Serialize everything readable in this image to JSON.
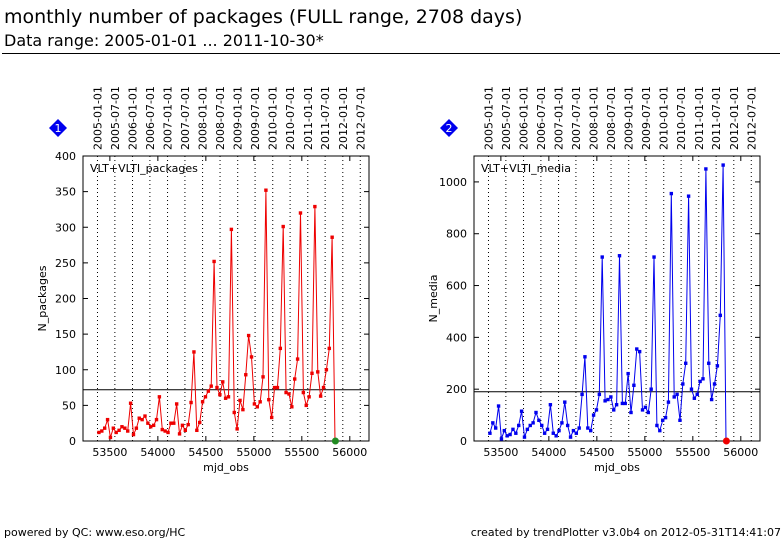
{
  "header": {
    "title": "monthly number of packages (FULL range, 2708 days)",
    "subtitle": "Data range: 2005-01-01 ... 2011-10-30*"
  },
  "footer": {
    "left": "powered by QC: www.eso.org/HC",
    "right": "created by trendPlotter v3.0b4 on 2012-05-31T14:41:07"
  },
  "chart_data": [
    {
      "type": "line",
      "panel_badge": "1",
      "badge_color": "#0000ee",
      "series_color": "#ee0000",
      "panel_label": "VLT+VLTI_packages",
      "xlabel": "mjd_obs",
      "ylabel": "N_packages",
      "xlim": [
        53220,
        56200
      ],
      "ylim": [
        0,
        400
      ],
      "x_ticks": [
        53500,
        54000,
        54500,
        55000,
        55500,
        56000
      ],
      "y_ticks": [
        0,
        50,
        100,
        150,
        200,
        250,
        300,
        350,
        400
      ],
      "date_ticks": [
        {
          "label": "2005-01-01",
          "mjd": 53371
        },
        {
          "label": "2005-07-01",
          "mjd": 53552
        },
        {
          "label": "2006-01-01",
          "mjd": 53736
        },
        {
          "label": "2006-07-01",
          "mjd": 53917
        },
        {
          "label": "2007-01-01",
          "mjd": 54101
        },
        {
          "label": "2007-07-01",
          "mjd": 54282
        },
        {
          "label": "2008-01-01",
          "mjd": 54466
        },
        {
          "label": "2008-07-01",
          "mjd": 54648
        },
        {
          "label": "2009-01-01",
          "mjd": 54832
        },
        {
          "label": "2009-07-01",
          "mjd": 55013
        },
        {
          "label": "2010-01-01",
          "mjd": 55197
        },
        {
          "label": "2010-07-01",
          "mjd": 55378
        },
        {
          "label": "2011-01-01",
          "mjd": 55562
        },
        {
          "label": "2011-07-01",
          "mjd": 55743
        },
        {
          "label": "2012-01-01",
          "mjd": 55927
        },
        {
          "label": "2012-07-01",
          "mjd": 56109
        }
      ],
      "reference_line": 72,
      "end_marker": {
        "x": 55850,
        "y": 0,
        "color": "#228b22"
      },
      "x": [
        53386,
        53416,
        53446,
        53476,
        53506,
        53536,
        53566,
        53596,
        53626,
        53656,
        53686,
        53716,
        53746,
        53776,
        53806,
        53836,
        53866,
        53896,
        53926,
        53956,
        53986,
        54016,
        54046,
        54076,
        54106,
        54136,
        54166,
        54196,
        54226,
        54256,
        54286,
        54316,
        54346,
        54376,
        54406,
        54436,
        54466,
        54496,
        54526,
        54556,
        54586,
        54616,
        54646,
        54676,
        54706,
        54736,
        54766,
        54796,
        54826,
        54856,
        54886,
        54916,
        54946,
        54976,
        55006,
        55036,
        55066,
        55096,
        55126,
        55156,
        55186,
        55216,
        55246,
        55276,
        55306,
        55336,
        55366,
        55396,
        55426,
        55456,
        55486,
        55516,
        55546,
        55576,
        55606,
        55636,
        55666,
        55696,
        55726,
        55756,
        55786,
        55816,
        55846
      ],
      "values": [
        12,
        14,
        18,
        30,
        5,
        18,
        12,
        15,
        20,
        18,
        14,
        53,
        9,
        18,
        32,
        30,
        35,
        25,
        20,
        22,
        30,
        62,
        16,
        14,
        12,
        25,
        25,
        52,
        10,
        22,
        15,
        23,
        54,
        125,
        15,
        26,
        55,
        62,
        70,
        77,
        252,
        75,
        65,
        83,
        60,
        62,
        297,
        40,
        17,
        57,
        44,
        93,
        148,
        118,
        52,
        48,
        55,
        90,
        352,
        58,
        33,
        75,
        75,
        130,
        301,
        68,
        66,
        48,
        87,
        115,
        320,
        68,
        50,
        62,
        95,
        329,
        97,
        63,
        75,
        100,
        130,
        286,
        0
      ]
    },
    {
      "type": "line",
      "panel_badge": "2",
      "badge_color": "#0000ee",
      "series_color": "#0000ee",
      "panel_label": "VLT+VLTI_media",
      "xlabel": "mjd_obs",
      "ylabel": "N_media",
      "xlim": [
        53220,
        56200
      ],
      "ylim": [
        0,
        1100
      ],
      "x_ticks": [
        53500,
        54000,
        54500,
        55000,
        55500,
        56000
      ],
      "y_ticks": [
        0,
        200,
        400,
        600,
        800,
        1000
      ],
      "date_ticks": [
        {
          "label": "2005-01-01",
          "mjd": 53371
        },
        {
          "label": "2005-07-01",
          "mjd": 53552
        },
        {
          "label": "2006-01-01",
          "mjd": 53736
        },
        {
          "label": "2006-07-01",
          "mjd": 53917
        },
        {
          "label": "2007-01-01",
          "mjd": 54101
        },
        {
          "label": "2007-07-01",
          "mjd": 54282
        },
        {
          "label": "2008-01-01",
          "mjd": 54466
        },
        {
          "label": "2008-07-01",
          "mjd": 54648
        },
        {
          "label": "2009-01-01",
          "mjd": 54832
        },
        {
          "label": "2009-07-01",
          "mjd": 55013
        },
        {
          "label": "2010-01-01",
          "mjd": 55197
        },
        {
          "label": "2010-07-01",
          "mjd": 55378
        },
        {
          "label": "2011-01-01",
          "mjd": 55562
        },
        {
          "label": "2011-07-01",
          "mjd": 55743
        },
        {
          "label": "2012-01-01",
          "mjd": 55927
        },
        {
          "label": "2012-07-01",
          "mjd": 56109
        }
      ],
      "reference_line": 190,
      "end_marker": {
        "x": 55850,
        "y": 0,
        "color": "#ee0000"
      },
      "x": [
        53386,
        53416,
        53446,
        53476,
        53506,
        53536,
        53566,
        53596,
        53626,
        53656,
        53686,
        53716,
        53746,
        53776,
        53806,
        53836,
        53866,
        53896,
        53926,
        53956,
        53986,
        54016,
        54046,
        54076,
        54106,
        54136,
        54166,
        54196,
        54226,
        54256,
        54286,
        54316,
        54346,
        54376,
        54406,
        54436,
        54466,
        54496,
        54526,
        54556,
        54586,
        54616,
        54646,
        54676,
        54706,
        54736,
        54766,
        54796,
        54826,
        54856,
        54886,
        54916,
        54946,
        54976,
        55006,
        55036,
        55066,
        55096,
        55126,
        55156,
        55186,
        55216,
        55246,
        55276,
        55306,
        55336,
        55366,
        55396,
        55426,
        55456,
        55486,
        55516,
        55546,
        55576,
        55606,
        55636,
        55666,
        55696,
        55726,
        55756,
        55786,
        55816,
        55846
      ],
      "values": [
        30,
        70,
        50,
        135,
        8,
        40,
        20,
        25,
        45,
        30,
        60,
        115,
        15,
        45,
        60,
        70,
        110,
        80,
        60,
        30,
        45,
        140,
        30,
        20,
        40,
        70,
        150,
        60,
        15,
        40,
        30,
        50,
        180,
        325,
        50,
        40,
        100,
        120,
        180,
        710,
        155,
        160,
        170,
        120,
        140,
        715,
        145,
        145,
        260,
        110,
        215,
        355,
        345,
        120,
        130,
        110,
        200,
        710,
        60,
        40,
        80,
        90,
        150,
        955,
        170,
        180,
        80,
        220,
        300,
        945,
        200,
        165,
        180,
        230,
        240,
        1050,
        300,
        160,
        220,
        290,
        485,
        1065,
        0
      ]
    }
  ]
}
